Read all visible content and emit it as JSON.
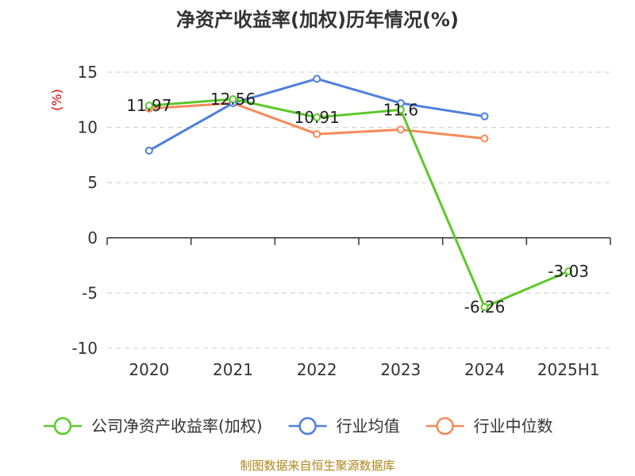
{
  "chart_data": {
    "type": "line",
    "title": "净资产收益率(加权)历年情况(%)",
    "ylabel": "(%)",
    "categories": [
      "2020",
      "2021",
      "2022",
      "2023",
      "2024",
      "2025H1"
    ],
    "ylim": [
      -10,
      15
    ],
    "yticks": [
      15,
      10,
      5,
      0,
      -5,
      -10
    ],
    "grid": true,
    "legend_position": "bottom",
    "series": [
      {
        "name": "公司净资产收益率(加权)",
        "color": "#5cc82a",
        "values": [
          11.97,
          12.56,
          10.91,
          11.6,
          -6.26,
          -3.03
        ],
        "labels": [
          "11.97",
          "12.56",
          "10.91",
          "11.6",
          "-6.26",
          "-3.03"
        ]
      },
      {
        "name": "行业均值",
        "color": "#4f7fdc",
        "values": [
          7.9,
          12.2,
          14.4,
          12.2,
          11.0,
          null
        ]
      },
      {
        "name": "行业中位数",
        "color": "#f58a5a",
        "values": [
          11.7,
          12.2,
          9.4,
          9.8,
          9.0,
          null
        ]
      }
    ],
    "source": "制图数据来自恒生聚源数据库"
  }
}
